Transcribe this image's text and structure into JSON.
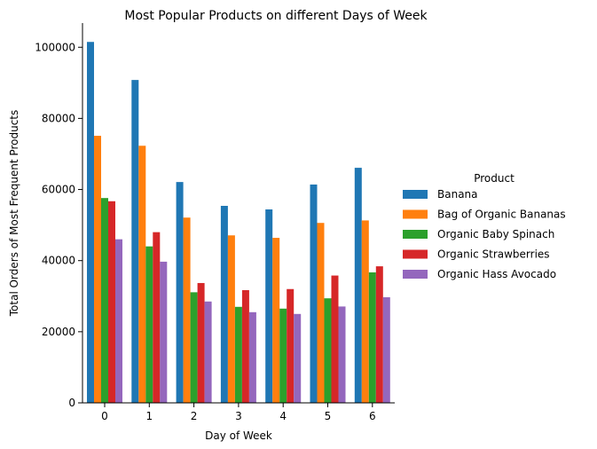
{
  "chart_data": {
    "type": "bar",
    "title": "Most Popular Products on different Days of Week",
    "xlabel": "Day of Week",
    "ylabel": "Total Orders of Most Frequent Products",
    "categories": [
      "0",
      "1",
      "2",
      "3",
      "4",
      "5",
      "6"
    ],
    "yticks": [
      "0",
      "20000",
      "40000",
      "60000",
      "80000",
      "100000"
    ],
    "ylim": [
      0,
      106800
    ],
    "grid": false,
    "legend_title": "Product",
    "legend_position": "right",
    "series": [
      {
        "name": "Banana",
        "color": "#1f77b4",
        "values": [
          101500,
          90800,
          62100,
          55400,
          54400,
          61400,
          66100
        ]
      },
      {
        "name": "Bag of Organic Bananas",
        "color": "#ff7f0e",
        "values": [
          75100,
          72300,
          52100,
          47100,
          46400,
          50600,
          51300
        ]
      },
      {
        "name": "Organic Baby Spinach",
        "color": "#2ca02c",
        "values": [
          57600,
          44000,
          31100,
          27000,
          26500,
          29400,
          36700
        ]
      },
      {
        "name": "Organic Strawberries",
        "color": "#d62728",
        "values": [
          56700,
          48000,
          33700,
          31700,
          32000,
          35800,
          38400
        ]
      },
      {
        "name": "Organic Hass Avocado",
        "color": "#9467bd",
        "values": [
          46000,
          39700,
          28500,
          25500,
          25000,
          27100,
          29700
        ]
      }
    ]
  }
}
